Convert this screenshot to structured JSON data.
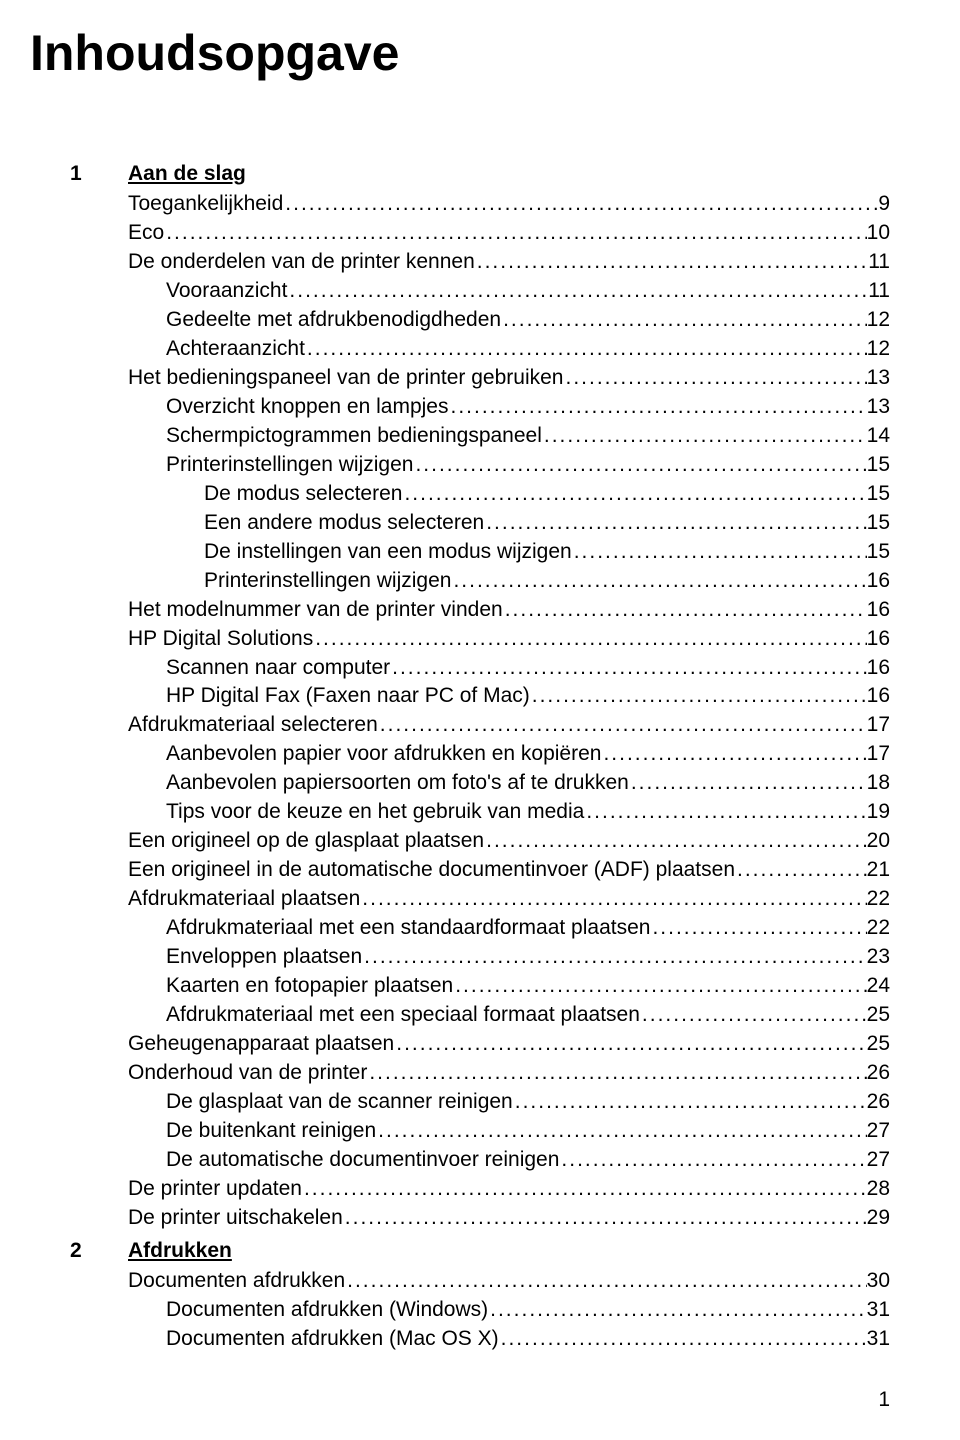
{
  "title": "Inhoudsopgave",
  "page_number": "1",
  "typography": {
    "title_fontsize": 50,
    "body_fontsize": 21,
    "font_family": "Arial",
    "title_weight": "bold",
    "chapter_weight": "bold",
    "text_color": "#000000",
    "background_color": "#ffffff"
  },
  "chapters": [
    {
      "number": "1",
      "title": "Aan de slag",
      "entries": [
        {
          "indent": 0,
          "label": "Toegankelijkheid",
          "page": "9"
        },
        {
          "indent": 0,
          "label": "Eco",
          "page": "10"
        },
        {
          "indent": 0,
          "label": "De onderdelen van de printer kennen",
          "page": "11"
        },
        {
          "indent": 1,
          "label": "Vooraanzicht",
          "page": "11"
        },
        {
          "indent": 1,
          "label": "Gedeelte met afdrukbenodigdheden",
          "page": "12"
        },
        {
          "indent": 1,
          "label": "Achteraanzicht",
          "page": "12"
        },
        {
          "indent": 0,
          "label": "Het bedieningspaneel van de printer gebruiken",
          "page": "13"
        },
        {
          "indent": 1,
          "label": "Overzicht knoppen en lampjes",
          "page": "13"
        },
        {
          "indent": 1,
          "label": "Schermpictogrammen bedieningspaneel",
          "page": "14"
        },
        {
          "indent": 1,
          "label": "Printerinstellingen wijzigen",
          "page": "15"
        },
        {
          "indent": 2,
          "label": "De modus selecteren",
          "page": "15"
        },
        {
          "indent": 2,
          "label": "Een andere modus selecteren",
          "page": "15"
        },
        {
          "indent": 2,
          "label": "De instellingen van een modus wijzigen",
          "page": "15"
        },
        {
          "indent": 2,
          "label": "Printerinstellingen wijzigen",
          "page": "16"
        },
        {
          "indent": 0,
          "label": "Het modelnummer van de printer vinden",
          "page": "16"
        },
        {
          "indent": 0,
          "label": "HP Digital Solutions",
          "page": "16"
        },
        {
          "indent": 1,
          "label": "Scannen naar computer",
          "page": "16"
        },
        {
          "indent": 1,
          "label": "HP Digital Fax (Faxen naar PC of Mac)",
          "page": "16"
        },
        {
          "indent": 0,
          "label": "Afdrukmateriaal selecteren",
          "page": "17"
        },
        {
          "indent": 1,
          "label": "Aanbevolen papier voor afdrukken en kopiëren",
          "page": "17"
        },
        {
          "indent": 1,
          "label": "Aanbevolen papiersoorten om foto's af te drukken",
          "page": "18"
        },
        {
          "indent": 1,
          "label": "Tips voor de keuze en het gebruik van media",
          "page": "19"
        },
        {
          "indent": 0,
          "label": "Een origineel op de glasplaat plaatsen",
          "page": "20"
        },
        {
          "indent": 0,
          "label": "Een origineel in de automatische documentinvoer (ADF) plaatsen",
          "page": "21"
        },
        {
          "indent": 0,
          "label": "Afdrukmateriaal plaatsen",
          "page": "22"
        },
        {
          "indent": 1,
          "label": "Afdrukmateriaal met een standaardformaat plaatsen",
          "page": "22"
        },
        {
          "indent": 1,
          "label": "Enveloppen plaatsen",
          "page": "23"
        },
        {
          "indent": 1,
          "label": "Kaarten en fotopapier plaatsen",
          "page": "24"
        },
        {
          "indent": 1,
          "label": "Afdrukmateriaal met een speciaal formaat plaatsen",
          "page": "25"
        },
        {
          "indent": 0,
          "label": "Geheugenapparaat plaatsen",
          "page": "25"
        },
        {
          "indent": 0,
          "label": "Onderhoud van de printer",
          "page": "26"
        },
        {
          "indent": 1,
          "label": "De glasplaat van de scanner reinigen",
          "page": "26"
        },
        {
          "indent": 1,
          "label": "De buitenkant reinigen ",
          "page": "27"
        },
        {
          "indent": 1,
          "label": "De automatische documentinvoer reinigen",
          "page": "27"
        },
        {
          "indent": 0,
          "label": "De printer updaten",
          "page": "28"
        },
        {
          "indent": 0,
          "label": "De printer uitschakelen",
          "page": "29"
        }
      ]
    },
    {
      "number": "2",
      "title": "Afdrukken",
      "entries": [
        {
          "indent": 0,
          "label": "Documenten afdrukken",
          "page": "30"
        },
        {
          "indent": 1,
          "label": "Documenten afdrukken (Windows)",
          "page": "31"
        },
        {
          "indent": 1,
          "label": "Documenten afdrukken (Mac OS X)",
          "page": "31"
        }
      ]
    }
  ]
}
